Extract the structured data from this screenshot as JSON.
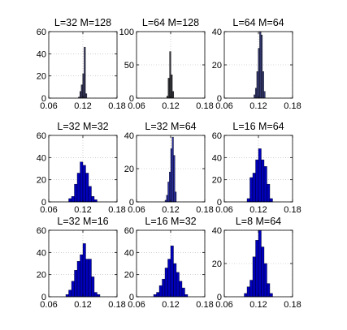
{
  "chart_data": [
    {
      "type": "bar",
      "title": "L=32 M=128",
      "xlim": [
        0.06,
        0.18
      ],
      "ylim": [
        0,
        60
      ],
      "xticks": [
        "0.06",
        "0.12",
        "0.18"
      ],
      "yticks": [
        "0",
        "20",
        "40",
        "60"
      ],
      "grid": "dotted",
      "color": "#35365a",
      "bins": [
        0.112,
        0.1145,
        0.117,
        0.1195,
        0.122,
        0.1245
      ],
      "values": [
        1,
        6,
        12,
        22,
        46,
        4
      ],
      "bin_width": 0.0025
    },
    {
      "type": "bar",
      "title": "L=64 M=128",
      "xlim": [
        0.06,
        0.18
      ],
      "ylim": [
        0,
        100
      ],
      "xticks": [
        "0.06",
        "0.12",
        "0.18"
      ],
      "yticks": [
        "0",
        "50",
        "100"
      ],
      "grid": "dotted",
      "color": "#34353a",
      "bins": [
        0.113,
        0.1155,
        0.118,
        0.1205,
        0.123
      ],
      "values": [
        3,
        30,
        70,
        35,
        10
      ],
      "bin_width": 0.0025
    },
    {
      "type": "bar",
      "title": "L=64 M=64",
      "xlim": [
        0.06,
        0.18
      ],
      "ylim": [
        0,
        40
      ],
      "xticks": [
        "0.06",
        "0.12",
        "0.18"
      ],
      "yticks": [
        "0",
        "20",
        "40"
      ],
      "grid": "dotted",
      "color": "#353a72",
      "bins": [
        0.112,
        0.1145,
        0.117,
        0.1195,
        0.122,
        0.1245,
        0.127,
        0.1295
      ],
      "values": [
        2,
        6,
        16,
        30,
        40,
        38,
        16,
        4
      ],
      "bin_width": 0.0025
    },
    {
      "type": "bar",
      "title": "L=32 M=32",
      "xlim": [
        0.06,
        0.18
      ],
      "ylim": [
        0,
        60
      ],
      "xticks": [
        "0.06",
        "0.12",
        "0.18"
      ],
      "yticks": [
        "0",
        "20",
        "40",
        "60"
      ],
      "grid": "dotted",
      "color": "#0000bb",
      "bins": [
        0.095,
        0.1,
        0.105,
        0.11,
        0.115,
        0.12,
        0.125,
        0.13,
        0.135,
        0.14
      ],
      "values": [
        3,
        5,
        16,
        26,
        36,
        33,
        26,
        14,
        5,
        2
      ],
      "bin_width": 0.005
    },
    {
      "type": "bar",
      "title": "L=32 M=64",
      "xlim": [
        0.06,
        0.18
      ],
      "ylim": [
        0,
        40
      ],
      "xticks": [
        "0.06",
        "0.12",
        "0.18"
      ],
      "yticks": [
        "0",
        "20",
        "40"
      ],
      "grid": "dotted",
      "color": "#2a2fa0",
      "bins": [
        0.11,
        0.1125,
        0.115,
        0.1175,
        0.12,
        0.1225,
        0.125,
        0.1275
      ],
      "values": [
        1,
        4,
        12,
        18,
        32,
        39,
        28,
        6
      ],
      "bin_width": 0.0025
    },
    {
      "type": "bar",
      "title": "L=16 M=64",
      "xlim": [
        0.06,
        0.18
      ],
      "ylim": [
        0,
        60
      ],
      "xticks": [
        "0.06",
        "0.12",
        "0.18"
      ],
      "yticks": [
        "0",
        "20",
        "40",
        "60"
      ],
      "grid": "dotted",
      "color": "#0000bb",
      "bins": [
        0.1,
        0.105,
        0.11,
        0.115,
        0.12,
        0.125,
        0.13,
        0.135,
        0.14
      ],
      "values": [
        3,
        22,
        26,
        38,
        48,
        38,
        32,
        16,
        3
      ],
      "bin_width": 0.005
    },
    {
      "type": "bar",
      "title": "L=32 M=16",
      "xlim": [
        0.06,
        0.18
      ],
      "ylim": [
        0,
        60
      ],
      "xticks": [
        "0.06",
        "0.12",
        "0.18"
      ],
      "yticks": [
        "0",
        "20",
        "40",
        "60"
      ],
      "grid": "dotted",
      "color": "#0000bb",
      "bins": [
        0.09,
        0.095,
        0.1,
        0.105,
        0.11,
        0.115,
        0.12,
        0.125,
        0.13,
        0.135,
        0.14,
        0.145
      ],
      "values": [
        2,
        6,
        14,
        24,
        32,
        38,
        48,
        34,
        34,
        18,
        4,
        2
      ],
      "bin_width": 0.005
    },
    {
      "type": "bar",
      "title": "L=16 M=32",
      "xlim": [
        0.06,
        0.18
      ],
      "ylim": [
        0,
        60
      ],
      "xticks": [
        "0.06",
        "0.12",
        "0.18"
      ],
      "yticks": [
        "0",
        "20",
        "40",
        "60"
      ],
      "grid": "dotted",
      "color": "#0000bb",
      "bins": [
        0.09,
        0.095,
        0.1,
        0.105,
        0.11,
        0.115,
        0.12,
        0.125,
        0.13,
        0.135,
        0.14,
        0.145
      ],
      "values": [
        2,
        4,
        10,
        16,
        26,
        34,
        46,
        30,
        22,
        14,
        8,
        2
      ],
      "bin_width": 0.005
    },
    {
      "type": "bar",
      "title": "L=8 M=64",
      "xlim": [
        0.06,
        0.18
      ],
      "ylim": [
        0,
        40
      ],
      "xticks": [
        "0.06",
        "0.12",
        "0.18"
      ],
      "yticks": [
        "0",
        "20",
        "40"
      ],
      "grid": "dotted",
      "color": "#0000bb",
      "bins": [
        0.095,
        0.1,
        0.105,
        0.11,
        0.115,
        0.12,
        0.125,
        0.13,
        0.135,
        0.14
      ],
      "values": [
        2,
        6,
        10,
        24,
        34,
        40,
        30,
        20,
        8,
        2
      ],
      "bin_width": 0.005
    }
  ]
}
